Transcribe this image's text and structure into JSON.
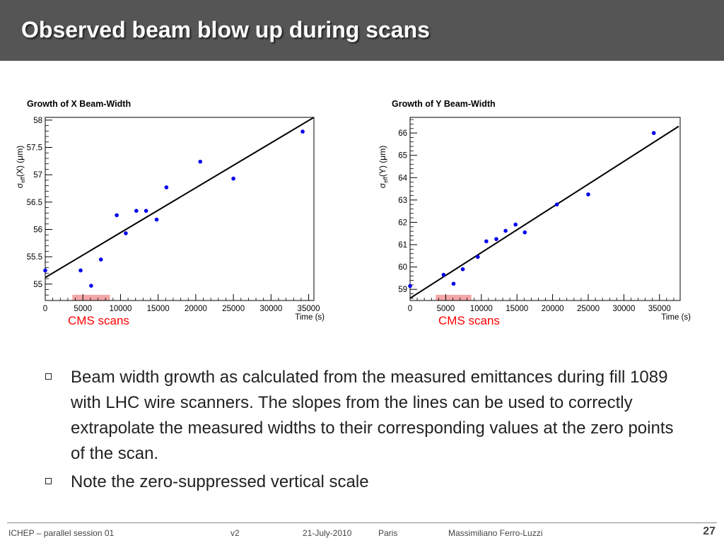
{
  "slide": {
    "title": "Observed beam blow up during scans"
  },
  "annotation_label": "CMS scans",
  "colors": {
    "points": "#0000ee",
    "fit_line": "#000000",
    "scan_band": "#f4a6a6",
    "header": "#555555"
  },
  "chart_data": [
    {
      "type": "scatter",
      "title": "Growth of X Beam-Width",
      "xlabel": "Time (s)",
      "ylabel": "σeff(X) (μm)",
      "ylabel_main": "σ",
      "ylabel_sub": "eff",
      "ylabel_rest": "(X) (μm)",
      "xlim": [
        0,
        35700
      ],
      "ylim": [
        54.7,
        58.05
      ],
      "x_ticks": [
        0,
        5000,
        10000,
        15000,
        20000,
        25000,
        30000,
        35000
      ],
      "x_tick_labels": [
        "0",
        "5000",
        "10000",
        "15000",
        "20000",
        "25000",
        "30000",
        "35000"
      ],
      "y_ticks": [
        55,
        55.5,
        56,
        56.5,
        57,
        57.5,
        58
      ],
      "y_tick_labels": [
        "55",
        "55.5",
        "56",
        "56.5",
        "57",
        "57.5",
        "58"
      ],
      "points": [
        {
          "x": 0,
          "y": 55.25
        },
        {
          "x": 4700,
          "y": 55.25
        },
        {
          "x": 6100,
          "y": 54.97
        },
        {
          "x": 7400,
          "y": 55.45
        },
        {
          "x": 9500,
          "y": 56.26
        },
        {
          "x": 10700,
          "y": 55.93
        },
        {
          "x": 12100,
          "y": 56.34
        },
        {
          "x": 13400,
          "y": 56.34
        },
        {
          "x": 14800,
          "y": 56.18
        },
        {
          "x": 16100,
          "y": 56.77
        },
        {
          "x": 20600,
          "y": 57.24
        },
        {
          "x": 25000,
          "y": 56.93
        },
        {
          "x": 34200,
          "y": 57.79
        }
      ],
      "fit": {
        "x": [
          0,
          35700
        ],
        "y": [
          55.12,
          58.05
        ]
      },
      "scan_band": [
        3600,
        8600
      ],
      "grid": false,
      "legend": "none"
    },
    {
      "type": "scatter",
      "title": "Growth of Y Beam-Width",
      "xlabel": "Time (s)",
      "ylabel": "σeff(Y) (μm)",
      "ylabel_main": "σ",
      "ylabel_sub": "eff",
      "ylabel_rest": "(Y) (μm)",
      "xlim": [
        0,
        37900
      ],
      "ylim": [
        58.5,
        66.7
      ],
      "x_ticks": [
        0,
        5000,
        10000,
        15000,
        20000,
        25000,
        30000,
        35000
      ],
      "x_tick_labels": [
        "0",
        "5000",
        "10000",
        "15000",
        "20000",
        "25000",
        "30000",
        "35000"
      ],
      "y_ticks": [
        59,
        60,
        61,
        62,
        63,
        64,
        65,
        66
      ],
      "y_tick_labels": [
        "59",
        "60",
        "61",
        "62",
        "63",
        "64",
        "65",
        "66"
      ],
      "points": [
        {
          "x": 0,
          "y": 59.15
        },
        {
          "x": 4700,
          "y": 59.65
        },
        {
          "x": 6100,
          "y": 59.25
        },
        {
          "x": 7400,
          "y": 59.9
        },
        {
          "x": 9500,
          "y": 60.45
        },
        {
          "x": 10700,
          "y": 61.15
        },
        {
          "x": 12100,
          "y": 61.25
        },
        {
          "x": 13400,
          "y": 61.62
        },
        {
          "x": 14800,
          "y": 61.9
        },
        {
          "x": 16100,
          "y": 61.55
        },
        {
          "x": 20600,
          "y": 62.8
        },
        {
          "x": 25000,
          "y": 63.25
        },
        {
          "x": 34200,
          "y": 66.0
        }
      ],
      "fit": {
        "x": [
          0,
          37700
        ],
        "y": [
          58.6,
          66.3
        ]
      },
      "scan_band": [
        3600,
        8600
      ],
      "grid": false,
      "legend": "none"
    }
  ],
  "bullets": [
    "Beam width growth as calculated from the measured emittances during fill 1089 with LHC wire scanners. The slopes from the lines can be used to correctly extrapolate the measured widths to their corresponding values at the zero points of the scan.",
    "Note the zero-suppressed vertical scale"
  ],
  "footer": {
    "session": "ICHEP – parallel session 01",
    "version": "v2",
    "date": "21-July-2010",
    "location": "Paris",
    "author": "Massimiliano Ferro-Luzzi",
    "page": "27"
  }
}
